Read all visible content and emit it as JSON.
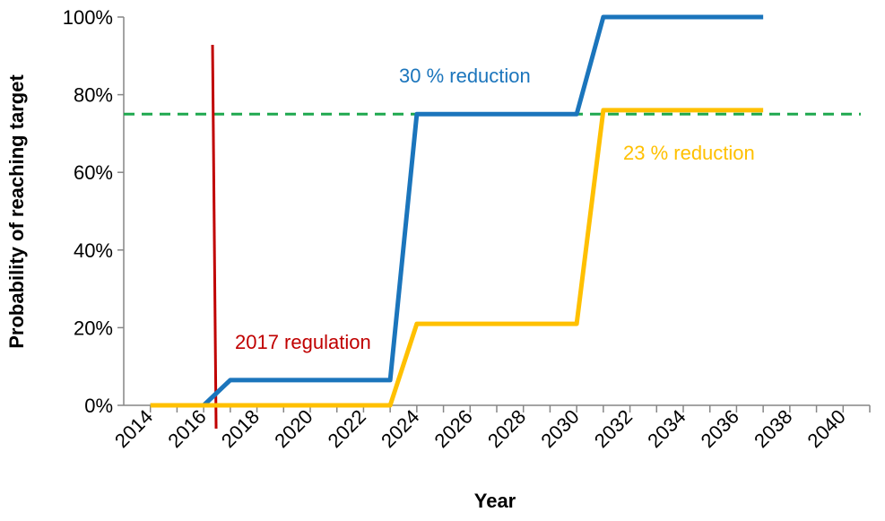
{
  "chart_data": {
    "type": "line",
    "x_label": "Year",
    "y_label": "Probability of reaching target",
    "x": [
      2014,
      2015,
      2016,
      2017,
      2018,
      2019,
      2020,
      2021,
      2022,
      2023,
      2024,
      2025,
      2026,
      2027,
      2028,
      2029,
      2030,
      2031,
      2032,
      2033,
      2034,
      2035,
      2036,
      2037
    ],
    "series": [
      {
        "color": "#1b75bc",
        "values": [
          0,
          0,
          0,
          6.5,
          6.5,
          6.5,
          6.5,
          6.5,
          6.5,
          6.5,
          75,
          75,
          75,
          75,
          75,
          75,
          75,
          100,
          100,
          100,
          100,
          100,
          100,
          100
        ]
      },
      {
        "color": "#ffc000",
        "values": [
          0,
          0,
          0,
          0,
          0,
          0,
          0,
          0,
          0,
          0,
          21,
          21,
          21,
          21,
          21,
          21,
          21,
          76,
          76,
          76,
          76,
          76,
          76,
          76
        ]
      }
    ],
    "xlim": [
      2013,
      2041
    ],
    "xticks": [
      2014,
      2016,
      2018,
      2020,
      2022,
      2024,
      2026,
      2028,
      2030,
      2032,
      2034,
      2036,
      2038,
      2040
    ],
    "ylim": [
      0,
      100
    ],
    "yticks": [
      {
        "value": 0,
        "label": "0%"
      },
      {
        "value": 20,
        "label": "20%"
      },
      {
        "value": 40,
        "label": "40%"
      },
      {
        "value": 60,
        "label": "60%"
      },
      {
        "value": 80,
        "label": "80%"
      },
      {
        "value": 100,
        "label": "100%"
      }
    ],
    "hline": {
      "y": 75,
      "color": "#1fa84f",
      "dashed": true
    },
    "vline": {
      "x": 2016.4,
      "color": "#c00000"
    },
    "annotations": [
      {
        "text": "30 % reduction",
        "color": "#1b75bc"
      },
      {
        "text": "23 % reduction",
        "color": "#ffc000"
      },
      {
        "text": "2017 regulation",
        "color": "#c00000"
      }
    ]
  }
}
